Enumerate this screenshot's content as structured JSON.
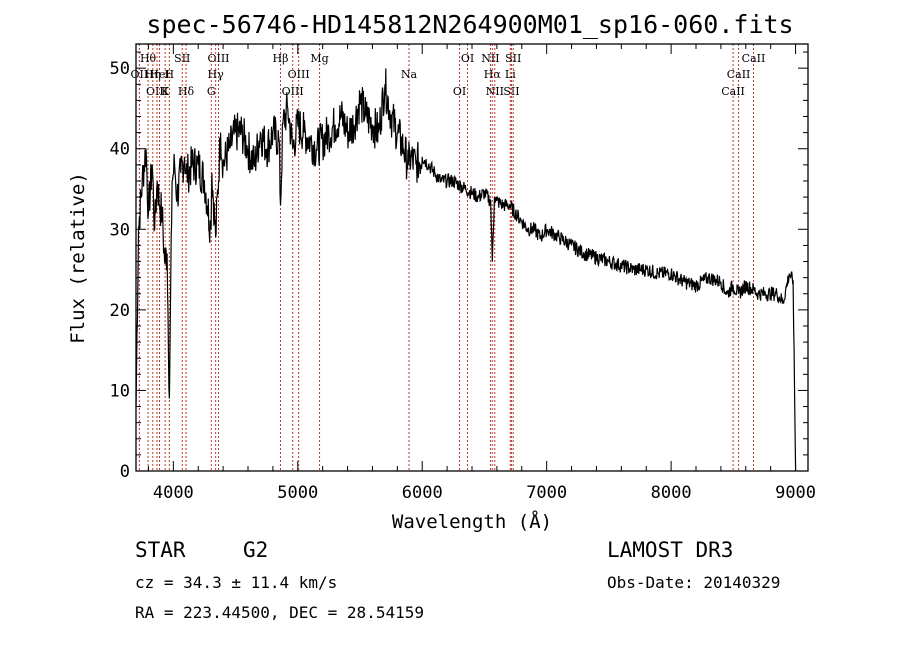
{
  "chart_data": {
    "type": "line",
    "title": "spec-56746-HD145812N264900M01_sp16-060.fits",
    "xlabel": "Wavelength (Å)",
    "ylabel": "Flux (relative)",
    "xlim": [
      3700,
      9100
    ],
    "ylim": [
      0,
      53
    ],
    "xticks": [
      4000,
      5000,
      6000,
      7000,
      8000,
      9000
    ],
    "yticks": [
      0,
      10,
      20,
      30,
      40,
      50
    ],
    "grid": false,
    "series": [
      {
        "name": "flux",
        "x": [
          3700,
          3720,
          3750,
          3780,
          3800,
          3830,
          3850,
          3870,
          3890,
          3910,
          3930,
          3950,
          3968,
          3990,
          4010,
          4030,
          4060,
          4090,
          4102,
          4120,
          4150,
          4200,
          4250,
          4300,
          4310,
          4340,
          4380,
          4400,
          4450,
          4500,
          4550,
          4600,
          4650,
          4700,
          4750,
          4800,
          4850,
          4861,
          4880,
          4920,
          4960,
          5000,
          5050,
          5100,
          5150,
          5200,
          5250,
          5300,
          5350,
          5400,
          5450,
          5500,
          5550,
          5600,
          5650,
          5700,
          5750,
          5800,
          5850,
          5890,
          5900,
          5950,
          6000,
          6050,
          6100,
          6150,
          6200,
          6250,
          6300,
          6350,
          6400,
          6450,
          6500,
          6550,
          6563,
          6580,
          6600,
          6650,
          6700,
          6750,
          6800,
          6850,
          6900,
          6950,
          7000,
          7100,
          7200,
          7300,
          7400,
          7500,
          7600,
          7700,
          7800,
          7900,
          8000,
          8100,
          8200,
          8300,
          8400,
          8450,
          8498,
          8542,
          8600,
          8662,
          8700,
          8750,
          8800,
          8850,
          8900,
          8950,
          8980,
          9000
        ],
        "y": [
          8,
          30,
          36,
          40,
          32,
          38,
          30,
          36,
          33,
          32,
          26,
          27,
          9,
          36,
          38,
          34,
          37,
          39,
          37,
          37,
          38,
          38,
          36,
          30,
          37,
          29,
          42,
          38,
          40,
          42,
          42,
          40,
          38,
          42,
          40,
          42,
          41,
          33,
          43,
          45,
          40,
          43,
          42,
          41,
          40,
          41,
          42,
          43,
          44,
          42,
          43,
          46,
          44,
          43,
          42,
          48,
          44,
          42,
          40,
          38,
          39,
          38,
          39,
          38,
          37,
          36,
          36,
          36,
          35.5,
          35,
          34.5,
          34,
          34.5,
          33.5,
          26,
          34,
          33.5,
          33,
          33,
          32,
          31,
          30,
          30,
          29,
          30,
          29,
          28,
          27,
          26.5,
          26,
          25.5,
          25,
          25,
          24.5,
          24.5,
          23.5,
          23,
          24,
          23.5,
          22,
          23,
          22,
          23,
          22.5,
          22,
          22,
          22,
          22,
          21,
          24.5,
          23.5,
          0
        ]
      }
    ],
    "line_markers": [
      {
        "label": "Hθ",
        "wavelength": 3797
      },
      {
        "label": "OII",
        "wavelength": 3727
      },
      {
        "label": "OIII",
        "wavelength": 3869
      },
      {
        "label": "HeI",
        "wavelength": 3889
      },
      {
        "label": "Hη",
        "wavelength": 3835
      },
      {
        "label": "K",
        "wavelength": 3934
      },
      {
        "label": "SII",
        "wavelength": 4072
      },
      {
        "label": "H",
        "wavelength": 3968
      },
      {
        "label": "Hδ",
        "wavelength": 4102
      },
      {
        "label": "OIII",
        "wavelength": 4363
      },
      {
        "label": "Hγ",
        "wavelength": 4340
      },
      {
        "label": "G",
        "wavelength": 4305
      },
      {
        "label": "Hβ",
        "wavelength": 4861
      },
      {
        "label": "OIII",
        "wavelength": 5007
      },
      {
        "label": "OIII",
        "wavelength": 4959
      },
      {
        "label": "Mg",
        "wavelength": 5175
      },
      {
        "label": "Na",
        "wavelength": 5894
      },
      {
        "label": "OI",
        "wavelength": 6300
      },
      {
        "label": "OI",
        "wavelength": 6364
      },
      {
        "label": "Hα",
        "wavelength": 6563
      },
      {
        "label": "SII",
        "wavelength": 6717
      },
      {
        "label": "NII",
        "wavelength": 6548
      },
      {
        "label": "Li",
        "wavelength": 6708
      },
      {
        "label": "NII",
        "wavelength": 6583
      },
      {
        "label": "SII",
        "wavelength": 6731
      },
      {
        "label": "CaII",
        "wavelength": 8542
      },
      {
        "label": "CaII",
        "wavelength": 8498
      },
      {
        "label": "CaII",
        "wavelength": 8662
      }
    ],
    "marker_color": "#c0392b"
  },
  "info": {
    "class_label": "STAR",
    "subclass": "G2",
    "survey": "LAMOST DR3",
    "redshift_line": "cz = 34.3 ± 11.4 km/s",
    "obs_date_line": "Obs-Date: 20140329",
    "coords_line": "RA = 223.44500, DEC =  28.54159"
  }
}
